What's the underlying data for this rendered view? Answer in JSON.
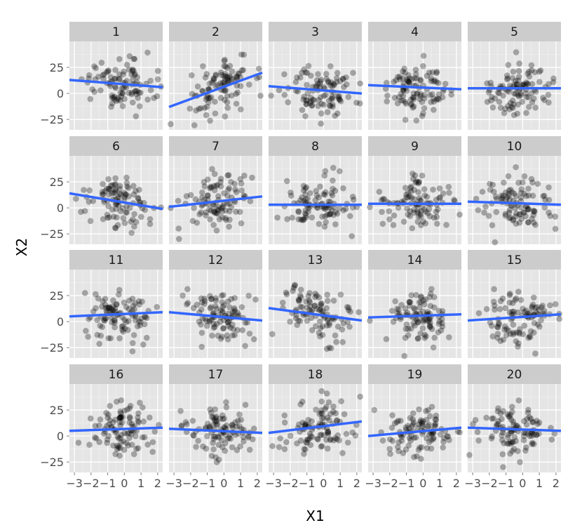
{
  "chart_data": {
    "type": "scatter",
    "xlabel": "X1",
    "ylabel": "X2",
    "xlim": [
      -3.3,
      2.3
    ],
    "ylim": [
      -35,
      50
    ],
    "x_ticks": [
      -3,
      -2,
      -1,
      0,
      1,
      2
    ],
    "x_tick_labels": [
      "−3",
      "−2",
      "−1",
      "0",
      "1",
      "2"
    ],
    "y_ticks": [
      -25,
      0,
      25
    ],
    "y_tick_labels": [
      "−25",
      "0",
      "25"
    ],
    "grid": true,
    "point_color": "#000000",
    "point_alpha": 0.3,
    "line_color": "#3366FF",
    "panel_background": "#E5E5E5",
    "strip_background": "#CCCCCC",
    "points_per_panel": 100,
    "panels": [
      {
        "label": "1",
        "fit": [
          [
            -3.3,
            13
          ],
          [
            2.3,
            6
          ]
        ]
      },
      {
        "label": "2",
        "fit": [
          [
            -3.3,
            -13
          ],
          [
            2.3,
            20
          ]
        ]
      },
      {
        "label": "3",
        "fit": [
          [
            -3.3,
            7
          ],
          [
            2.3,
            0
          ]
        ]
      },
      {
        "label": "4",
        "fit": [
          [
            -3.3,
            8
          ],
          [
            2.3,
            4
          ]
        ]
      },
      {
        "label": "5",
        "fit": [
          [
            -3.3,
            5
          ],
          [
            2.3,
            5
          ]
        ]
      },
      {
        "label": "6",
        "fit": [
          [
            -3.3,
            14
          ],
          [
            2.3,
            -1
          ]
        ]
      },
      {
        "label": "7",
        "fit": [
          [
            -3.3,
            1
          ],
          [
            2.3,
            11
          ]
        ]
      },
      {
        "label": "8",
        "fit": [
          [
            -3.3,
            3
          ],
          [
            2.3,
            3
          ]
        ]
      },
      {
        "label": "9",
        "fit": [
          [
            -3.3,
            4
          ],
          [
            2.3,
            4
          ]
        ]
      },
      {
        "label": "10",
        "fit": [
          [
            -3.3,
            6
          ],
          [
            2.3,
            3
          ]
        ]
      },
      {
        "label": "11",
        "fit": [
          [
            -3.3,
            5
          ],
          [
            2.3,
            9
          ]
        ]
      },
      {
        "label": "12",
        "fit": [
          [
            -3.3,
            9
          ],
          [
            2.3,
            1
          ]
        ]
      },
      {
        "label": "13",
        "fit": [
          [
            -3.3,
            13
          ],
          [
            2.3,
            1
          ]
        ]
      },
      {
        "label": "14",
        "fit": [
          [
            -3.3,
            4
          ],
          [
            2.3,
            7
          ]
        ]
      },
      {
        "label": "15",
        "fit": [
          [
            -3.3,
            1
          ],
          [
            2.3,
            7
          ]
        ]
      },
      {
        "label": "16",
        "fit": [
          [
            -3.3,
            5
          ],
          [
            2.3,
            8
          ]
        ]
      },
      {
        "label": "17",
        "fit": [
          [
            -3.3,
            7
          ],
          [
            2.3,
            3
          ]
        ]
      },
      {
        "label": "18",
        "fit": [
          [
            -3.3,
            3
          ],
          [
            2.3,
            14
          ]
        ]
      },
      {
        "label": "19",
        "fit": [
          [
            -3.3,
            0
          ],
          [
            2.3,
            8
          ]
        ]
      },
      {
        "label": "20",
        "fit": [
          [
            -3.3,
            8
          ],
          [
            2.3,
            5
          ]
        ]
      }
    ]
  }
}
